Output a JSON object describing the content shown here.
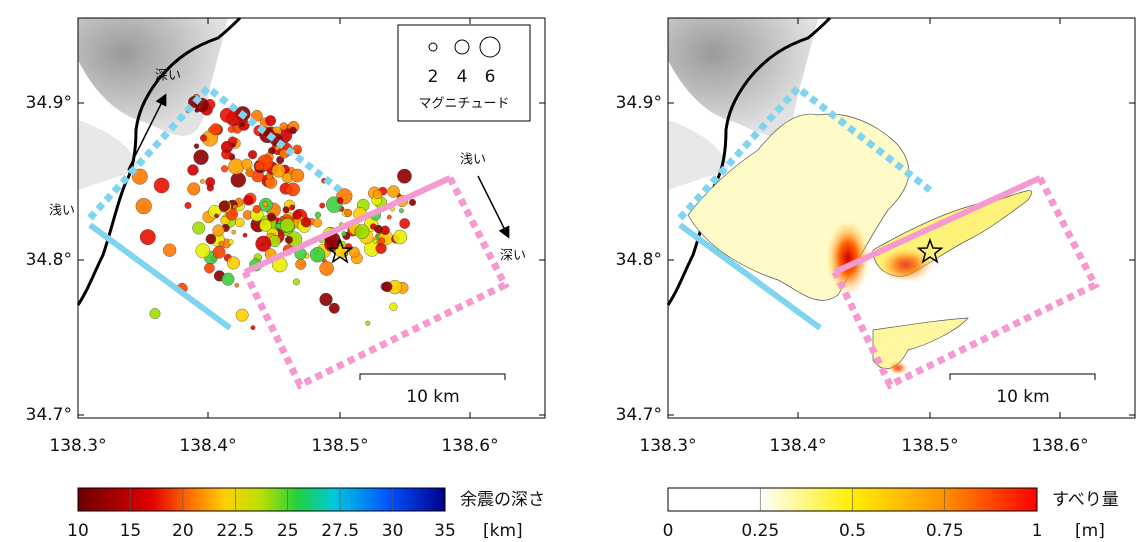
{
  "left_map": {
    "yticks": [
      "34.9°",
      "34.8°",
      "34.7°"
    ],
    "xticks": [
      "138.3°",
      "138.4°",
      "138.5°",
      "138.6°"
    ],
    "legend": {
      "sizes": [
        "2",
        "4",
        "6"
      ],
      "label": "マグニチュード"
    },
    "annotations": {
      "deep_top": "深い",
      "shallow_left": "浅い",
      "shallow_right": "浅い",
      "deep_right": "深い"
    },
    "scale": "10 km"
  },
  "right_map": {
    "yticks": [
      "34.9°",
      "34.8°",
      "34.7°"
    ],
    "xticks": [
      "138.3°",
      "138.4°",
      "138.5°",
      "138.6°"
    ],
    "scale": "10 km"
  },
  "depth_colorbar": {
    "ticks": [
      "10",
      "15",
      "20",
      "22.5",
      "25",
      "27.5",
      "30",
      "35"
    ],
    "title": "余震の深さ",
    "unit": "[km]"
  },
  "slip_colorbar": {
    "ticks": [
      "0",
      "0.25",
      "0.5",
      "0.75",
      "1"
    ],
    "title": "すべり量",
    "unit": "[m]"
  }
}
